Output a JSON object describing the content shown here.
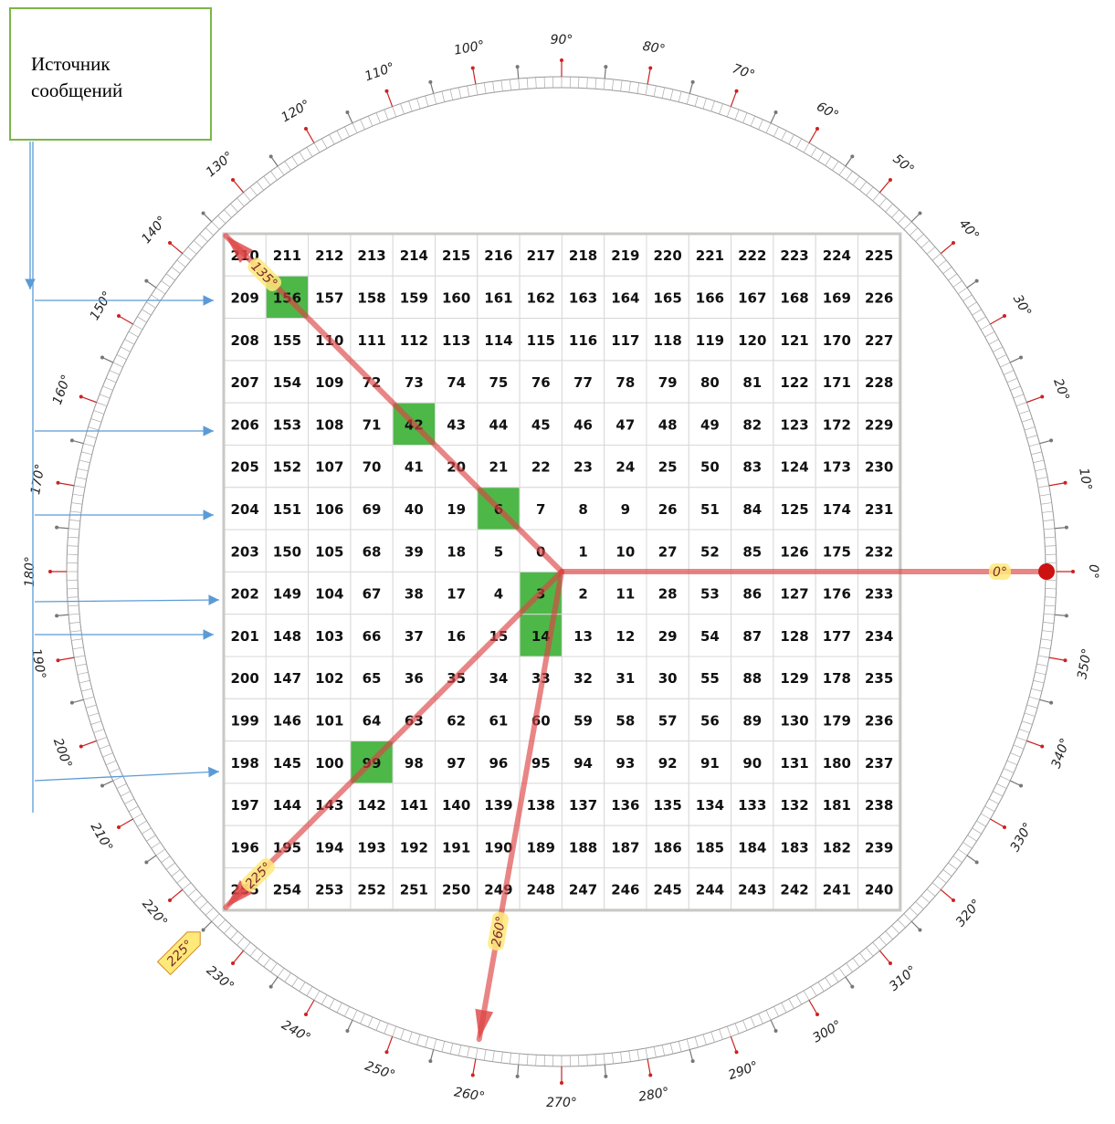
{
  "source": {
    "label": "Источник сообщений"
  },
  "grid": {
    "rows": [
      [
        210,
        211,
        212,
        213,
        214,
        215,
        216,
        217,
        218,
        219,
        220,
        221,
        222,
        223,
        224,
        225
      ],
      [
        209,
        156,
        157,
        158,
        159,
        160,
        161,
        162,
        163,
        164,
        165,
        166,
        167,
        168,
        169,
        226
      ],
      [
        208,
        155,
        110,
        111,
        112,
        113,
        114,
        115,
        116,
        117,
        118,
        119,
        120,
        121,
        170,
        227
      ],
      [
        207,
        154,
        109,
        72,
        73,
        74,
        75,
        76,
        77,
        78,
        79,
        80,
        81,
        122,
        171,
        228
      ],
      [
        206,
        153,
        108,
        71,
        42,
        43,
        44,
        45,
        46,
        47,
        48,
        49,
        82,
        123,
        172,
        229
      ],
      [
        205,
        152,
        107,
        70,
        41,
        20,
        21,
        22,
        23,
        24,
        25,
        50,
        83,
        124,
        173,
        230
      ],
      [
        204,
        151,
        106,
        69,
        40,
        19,
        6,
        7,
        8,
        9,
        26,
        51,
        84,
        125,
        174,
        231
      ],
      [
        203,
        150,
        105,
        68,
        39,
        18,
        5,
        0,
        1,
        10,
        27,
        52,
        85,
        126,
        175,
        232
      ],
      [
        202,
        149,
        104,
        67,
        38,
        17,
        4,
        3,
        2,
        11,
        28,
        53,
        86,
        127,
        176,
        233
      ],
      [
        201,
        148,
        103,
        66,
        37,
        16,
        15,
        14,
        13,
        12,
        29,
        54,
        87,
        128,
        177,
        234
      ],
      [
        200,
        147,
        102,
        65,
        36,
        35,
        34,
        33,
        32,
        31,
        30,
        55,
        88,
        129,
        178,
        235
      ],
      [
        199,
        146,
        101,
        64,
        63,
        62,
        61,
        60,
        59,
        58,
        57,
        56,
        89,
        130,
        179,
        236
      ],
      [
        198,
        145,
        100,
        99,
        98,
        97,
        96,
        95,
        94,
        93,
        92,
        91,
        90,
        131,
        180,
        237
      ],
      [
        197,
        144,
        143,
        142,
        141,
        140,
        139,
        138,
        137,
        136,
        135,
        134,
        133,
        132,
        181,
        238
      ],
      [
        196,
        195,
        194,
        193,
        192,
        191,
        190,
        189,
        188,
        187,
        186,
        185,
        184,
        183,
        182,
        239
      ],
      [
        255,
        254,
        253,
        252,
        251,
        250,
        249,
        248,
        247,
        246,
        245,
        244,
        243,
        242,
        241,
        240
      ]
    ],
    "highlighted": [
      156,
      42,
      6,
      3,
      14,
      99
    ],
    "highlight_color": "#4db848"
  },
  "dial": {
    "labels": [
      "0°",
      "10°",
      "20°",
      "30°",
      "40°",
      "50°",
      "60°",
      "70°",
      "80°",
      "90°",
      "100°",
      "110°",
      "120°",
      "130°",
      "140°",
      "150°",
      "160°",
      "170°",
      "180°",
      "190°",
      "200°",
      "210°",
      "220°",
      "230°",
      "240°",
      "250°",
      "260°",
      "270°",
      "280°",
      "290°",
      "300°",
      "310°",
      "320°",
      "330°",
      "340°",
      "350°"
    ],
    "major_tick_color": "#cc2222",
    "minor_tick_color": "#777777"
  },
  "rays": [
    {
      "label": "0°",
      "angle": 0
    },
    {
      "label": "135°",
      "angle": 135
    },
    {
      "label": "225°",
      "angle": 225
    },
    {
      "label": "260°",
      "angle": 260
    }
  ],
  "ray_color": "#dd4444",
  "tag_fill": "#ffe97a",
  "dial_tag": {
    "label": "225°"
  },
  "arrow_color": "#5b9bd5"
}
